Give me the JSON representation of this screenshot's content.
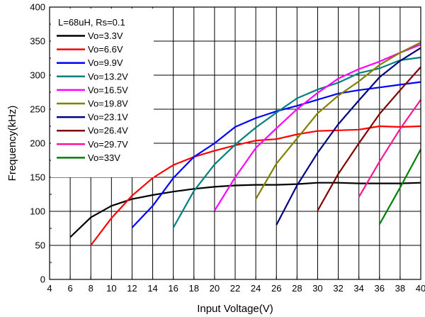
{
  "chart_data": {
    "type": "line",
    "title": "",
    "xlabel": "Input Voltage(V)",
    "ylabel": "Frequency(kHz)",
    "xlim": [
      4,
      40
    ],
    "ylim": [
      0,
      400
    ],
    "xticks": [
      4,
      6,
      8,
      10,
      12,
      14,
      16,
      18,
      20,
      22,
      24,
      26,
      28,
      30,
      32,
      34,
      36,
      38,
      40
    ],
    "yticks": [
      0,
      50,
      100,
      150,
      200,
      250,
      300,
      350,
      400
    ],
    "grid": true,
    "legend_position": "top-left",
    "legend_title": "L=68uH, Rs=0.1",
    "series": [
      {
        "name": "Vo=3.3V",
        "color": "#000000",
        "x": [
          6,
          8,
          10,
          12,
          14,
          16,
          18,
          20,
          22,
          24,
          26,
          28,
          30,
          32,
          34,
          36,
          38,
          40
        ],
        "y": [
          62,
          91,
          108,
          118,
          124,
          129,
          133,
          136,
          138,
          139,
          139,
          140,
          142,
          142,
          141,
          141,
          141,
          142
        ]
      },
      {
        "name": "Vo=6.6V",
        "color": "#ff0000",
        "x": [
          8,
          10,
          12,
          14,
          16,
          18,
          20,
          22,
          24,
          26,
          28,
          30,
          32,
          34,
          36,
          38,
          40
        ],
        "y": [
          50,
          90,
          123,
          149,
          168,
          180,
          189,
          197,
          204,
          206,
          213,
          218,
          219,
          220,
          225,
          224,
          225
        ]
      },
      {
        "name": "Vo=9.9V",
        "color": "#0000ff",
        "x": [
          12,
          14,
          16,
          18,
          20,
          22,
          24,
          26,
          28,
          30,
          32,
          34,
          36,
          38,
          40
        ],
        "y": [
          76,
          108,
          149,
          180,
          200,
          224,
          237,
          247,
          255,
          264,
          273,
          278,
          282,
          286,
          290
        ]
      },
      {
        "name": "Vo=13.2V",
        "color": "#008080",
        "x": [
          16,
          18,
          20,
          22,
          24,
          26,
          28,
          30,
          32,
          34,
          36,
          38,
          40
        ],
        "y": [
          76,
          130,
          169,
          198,
          223,
          245,
          266,
          279,
          289,
          303,
          310,
          322,
          326
        ]
      },
      {
        "name": "Vo=16.5V",
        "color": "#ff00ff",
        "x": [
          20,
          22,
          24,
          26,
          28,
          30,
          32,
          34,
          36,
          38,
          40
        ],
        "y": [
          101,
          150,
          193,
          222,
          250,
          274,
          295,
          309,
          320,
          333,
          345
        ]
      },
      {
        "name": "Vo=19.8V",
        "color": "#808000",
        "x": [
          24,
          26,
          28,
          30,
          32,
          34,
          36,
          38,
          40
        ],
        "y": [
          118,
          170,
          207,
          244,
          270,
          291,
          315,
          333,
          348
        ]
      },
      {
        "name": "Vo=23.1V",
        "color": "#000080",
        "x": [
          26,
          28,
          30,
          32,
          34,
          36,
          38,
          40
        ],
        "y": [
          80,
          138,
          186,
          228,
          263,
          297,
          321,
          340
        ]
      },
      {
        "name": "Vo=26.4V",
        "color": "#800000",
        "x": [
          30,
          32,
          34,
          36,
          38,
          40
        ],
        "y": [
          101,
          155,
          200,
          243,
          278,
          312
        ]
      },
      {
        "name": "Vo=29.7V",
        "color": "#ff1493",
        "x": [
          34,
          36,
          38,
          40
        ],
        "y": [
          121,
          173,
          221,
          264
        ]
      },
      {
        "name": "Vo=33V",
        "color": "#008000",
        "x": [
          36,
          38,
          40
        ],
        "y": [
          81,
          135,
          191
        ]
      }
    ]
  }
}
